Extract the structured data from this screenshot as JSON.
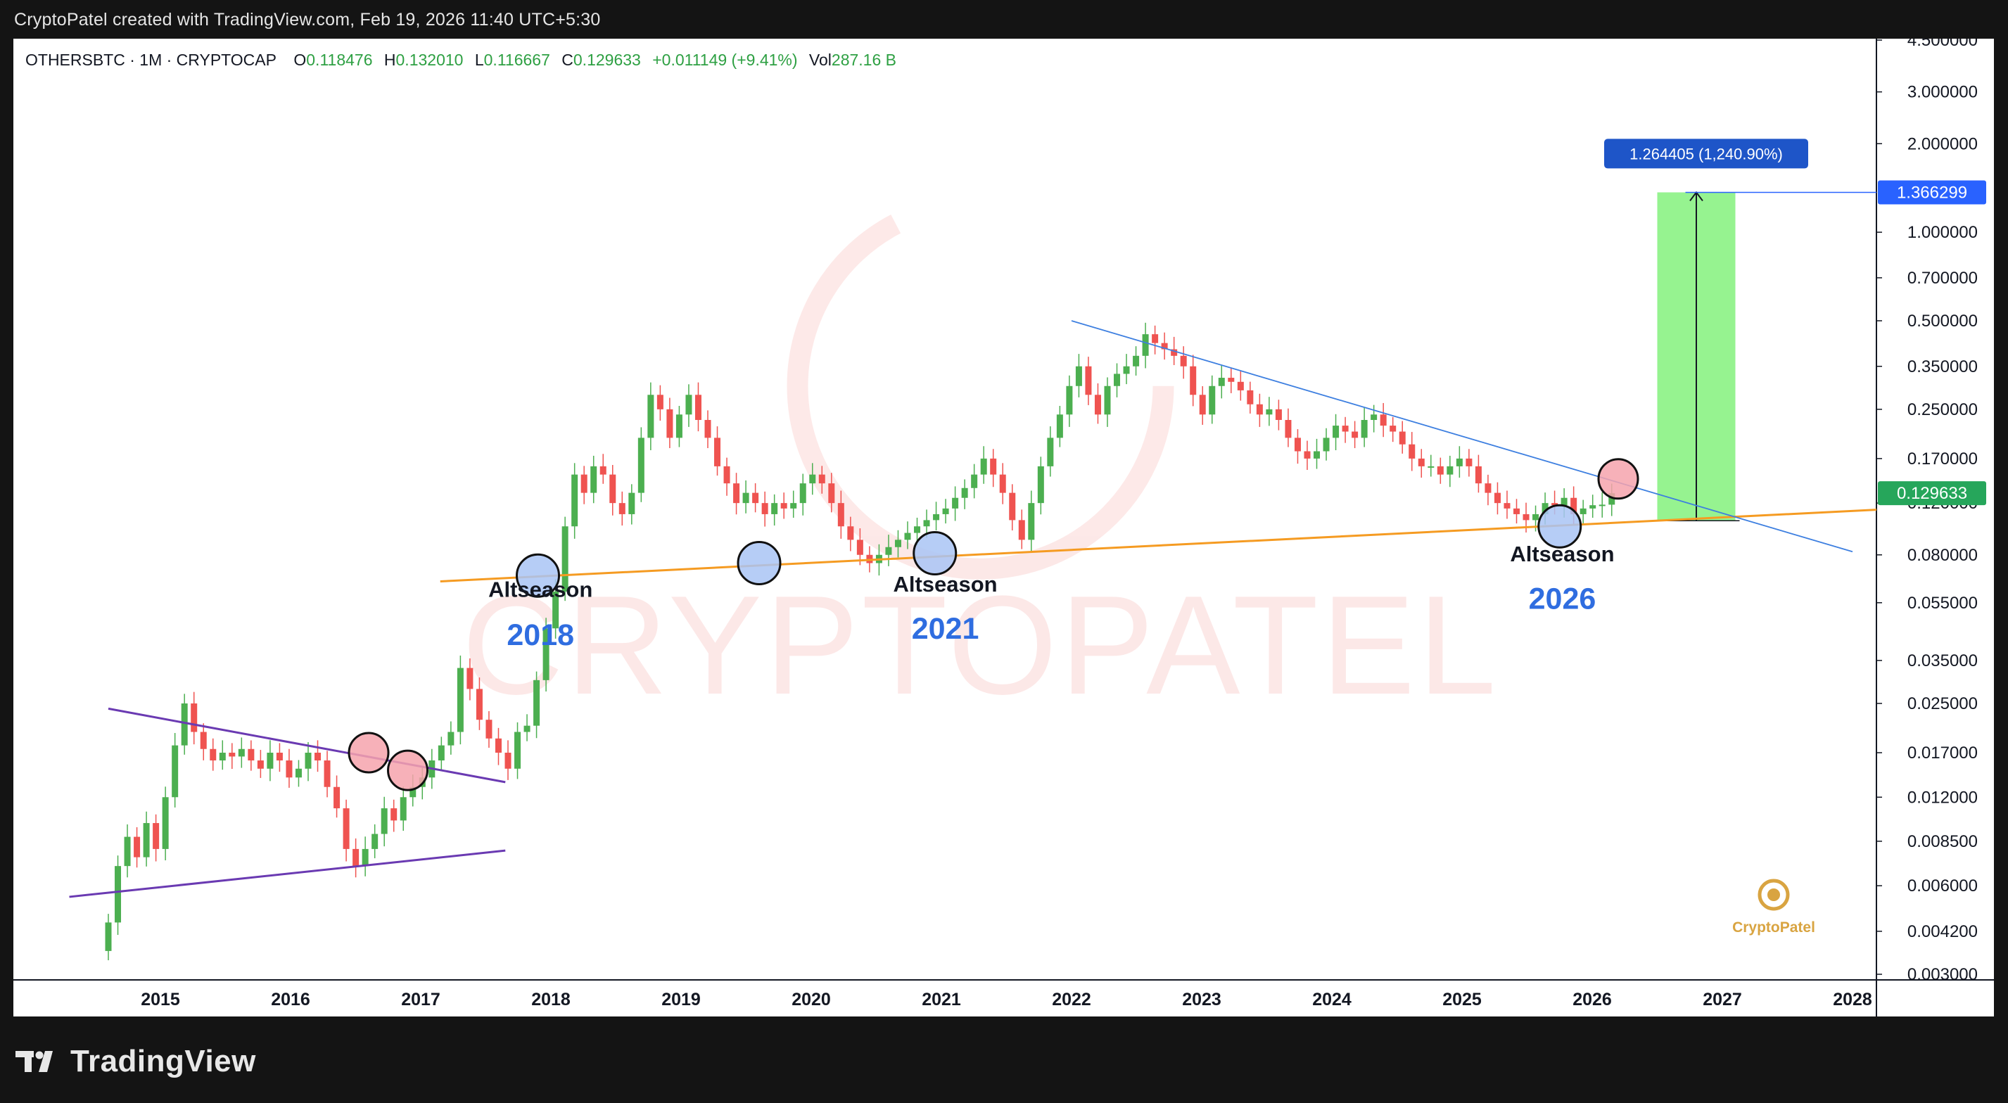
{
  "header": {
    "caption": "CryptoPatel created with TradingView.com, Feb 19, 2026 11:40 UTC+5:30"
  },
  "legend": {
    "symbol": "OTHERSBTC · 1M · CRYPTOCAP",
    "open_label": "O",
    "open": "0.118476",
    "high_label": "H",
    "high": "0.132010",
    "low_label": "L",
    "low": "0.116667",
    "close_label": "C",
    "close": "0.129633",
    "change": "+0.011149 (+9.41%)",
    "vol_label": "Vol",
    "vol": "287.16 B"
  },
  "watermark": {
    "text": "CRYPTOPATEL",
    "logo_text": "CryptoPatel"
  },
  "footer": {
    "brand": "TradingView"
  },
  "colors": {
    "up": "#26a69a",
    "up_candle": "#4caf50",
    "down": "#ef5350",
    "support": "#f59b22",
    "resistance": "#3d7fe0",
    "wedge": "#6a3ab2",
    "target_box": "#90f28a",
    "price_tag": "#26a65b",
    "target_tag": "#2962ff"
  },
  "chart_data": {
    "type": "candlestick",
    "title": "OTHERSBTC · 1M · CRYPTOCAP",
    "y_scale": "log",
    "y_ticks": [
      "4.500000",
      "3.000000",
      "2.000000",
      "1.000000",
      "0.700000",
      "0.500000",
      "0.350000",
      "0.250000",
      "0.170000",
      "0.120000",
      "0.080000",
      "0.055000",
      "0.035000",
      "0.025000",
      "0.017000",
      "0.012000",
      "0.008500",
      "0.006000",
      "0.004200",
      "0.003000"
    ],
    "x_ticks": [
      "2015",
      "2016",
      "2017",
      "2018",
      "2019",
      "2020",
      "2021",
      "2022",
      "2023",
      "2024",
      "2025",
      "2026",
      "2027",
      "2028"
    ],
    "ylim": [
      0.003,
      4.5
    ],
    "xlim": [
      2014.2,
      2028.2
    ],
    "last_price": "0.129633",
    "target_price": "1.366299",
    "target_measure": "1.264405 (1,240.90%)",
    "annotations": [
      {
        "label": "Altseason",
        "year": "2018"
      },
      {
        "label": "Altseason",
        "year": "2021"
      },
      {
        "label": "Altseason",
        "year": "2026"
      }
    ],
    "trendlines": [
      {
        "name": "support",
        "points": [
          [
            2017.15,
            0.065
          ],
          [
            2028.2,
            0.114
          ]
        ]
      },
      {
        "name": "resistance",
        "points": [
          [
            2022.0,
            0.5
          ],
          [
            2028.0,
            0.082
          ]
        ]
      },
      {
        "name": "wedge_top",
        "points": [
          [
            2014.6,
            0.024
          ],
          [
            2017.65,
            0.0135
          ]
        ]
      },
      {
        "name": "wedge_bottom",
        "points": [
          [
            2014.3,
            0.0055
          ],
          [
            2017.65,
            0.0079
          ]
        ]
      }
    ],
    "circles": [
      {
        "t": 2016.6,
        "v": 0.017,
        "kind": "breakout"
      },
      {
        "t": 2016.9,
        "v": 0.0148,
        "kind": "retest"
      },
      {
        "t": 2017.9,
        "v": 0.068,
        "kind": "low"
      },
      {
        "t": 2019.6,
        "v": 0.075,
        "kind": "low"
      },
      {
        "t": 2020.95,
        "v": 0.081,
        "kind": "low"
      },
      {
        "t": 2025.75,
        "v": 0.1,
        "kind": "low"
      },
      {
        "t": 2026.2,
        "v": 0.145,
        "kind": "breakout"
      }
    ],
    "target_box": {
      "t0": 2026.5,
      "t1": 2027.1,
      "low": 0.1045,
      "high": 1.366299
    },
    "candles_close": [
      0.0045,
      0.007,
      0.0088,
      0.0075,
      0.0098,
      0.008,
      0.012,
      0.018,
      0.025,
      0.02,
      0.0175,
      0.016,
      0.017,
      0.0165,
      0.0175,
      0.016,
      0.015,
      0.017,
      0.016,
      0.014,
      0.015,
      0.017,
      0.016,
      0.013,
      0.011,
      0.008,
      0.007,
      0.008,
      0.009,
      0.011,
      0.01,
      0.012,
      0.013,
      0.014,
      0.016,
      0.018,
      0.02,
      0.033,
      0.028,
      0.022,
      0.019,
      0.017,
      0.015,
      0.02,
      0.021,
      0.03,
      0.045,
      0.06,
      0.1,
      0.15,
      0.13,
      0.16,
      0.15,
      0.12,
      0.11,
      0.13,
      0.2,
      0.28,
      0.25,
      0.2,
      0.24,
      0.28,
      0.23,
      0.2,
      0.16,
      0.14,
      0.12,
      0.13,
      0.12,
      0.11,
      0.12,
      0.115,
      0.12,
      0.14,
      0.15,
      0.14,
      0.12,
      0.1,
      0.09,
      0.08,
      0.075,
      0.08,
      0.085,
      0.09,
      0.095,
      0.1,
      0.105,
      0.11,
      0.115,
      0.125,
      0.135,
      0.15,
      0.17,
      0.15,
      0.13,
      0.105,
      0.09,
      0.12,
      0.16,
      0.2,
      0.24,
      0.3,
      0.35,
      0.28,
      0.24,
      0.3,
      0.33,
      0.35,
      0.38,
      0.45,
      0.42,
      0.4,
      0.38,
      0.35,
      0.28,
      0.24,
      0.3,
      0.32,
      0.31,
      0.29,
      0.26,
      0.24,
      0.25,
      0.23,
      0.2,
      0.18,
      0.17,
      0.18,
      0.2,
      0.22,
      0.21,
      0.2,
      0.23,
      0.24,
      0.22,
      0.21,
      0.19,
      0.17,
      0.16,
      0.16,
      0.15,
      0.16,
      0.17,
      0.16,
      0.14,
      0.13,
      0.12,
      0.115,
      0.11,
      0.105,
      0.11,
      0.12,
      0.118,
      0.125,
      0.11,
      0.115,
      0.118,
      0.1185,
      0.1296
    ]
  }
}
